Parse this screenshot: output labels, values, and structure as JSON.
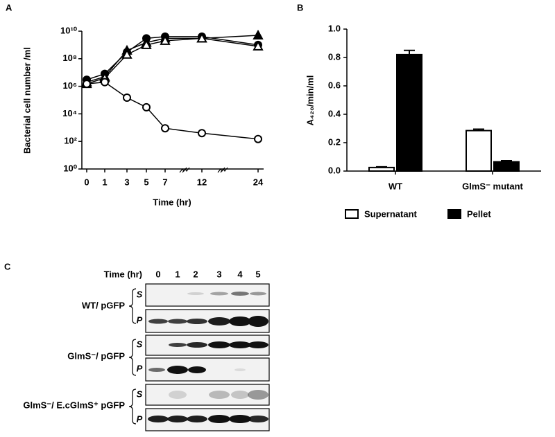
{
  "chart_data": [
    {
      "type": "line",
      "panel_label": "A",
      "x_label": "Time (hr)",
      "y_label": "Bacterial cell number /ml",
      "categories": [
        "0",
        "1",
        "3",
        "5",
        "7",
        "12",
        "24"
      ],
      "log_y": true,
      "ylim": [
        1,
        10000000000
      ],
      "yticks": [
        {
          "value": 1,
          "label": "10⁰"
        },
        {
          "value": 100,
          "label": "10²"
        },
        {
          "value": 10000,
          "label": "10⁴"
        },
        {
          "value": 1000000,
          "label": "10⁶"
        },
        {
          "value": 100000000,
          "label": "10⁸"
        },
        {
          "value": 10000000000,
          "label": "10¹⁰"
        }
      ],
      "series": [
        {
          "marker": "circle",
          "filled": true,
          "color": "#000000",
          "values": [
            3000000,
            8000000,
            300000000,
            3000000000,
            4000000000,
            4000000000,
            1000000000
          ]
        },
        {
          "marker": "triangle",
          "filled": true,
          "color": "#000000",
          "values": [
            2000000,
            5000000,
            400000000,
            1500000000,
            3000000000,
            3000000000,
            5000000000
          ]
        },
        {
          "marker": "triangle",
          "filled": false,
          "color": "#000000",
          "values": [
            1500000,
            4000000,
            200000000,
            1000000000,
            2000000000,
            3000000000,
            800000000
          ]
        },
        {
          "marker": "circle",
          "filled": false,
          "color": "#000000",
          "values": [
            1500000,
            2000000,
            150000,
            30000,
            900,
            400,
            150
          ]
        }
      ]
    },
    {
      "type": "bar",
      "panel_label": "B",
      "y_label": "A₄₂₀/min/ml",
      "categories": [
        "WT",
        "GlmS⁻ mutant"
      ],
      "ylim": [
        0,
        1
      ],
      "yticks": [
        {
          "value": 0,
          "label": "0.0"
        },
        0.2,
        0.4,
        0.6,
        0.8,
        {
          "value": 1,
          "label": "1.0"
        }
      ],
      "legend": "bottom",
      "series": [
        {
          "name": "Supernatant",
          "color": "#ffffff",
          "values": [
            0.025,
            0.285
          ],
          "errors": [
            0.005,
            0.01
          ]
        },
        {
          "name": "Pellet",
          "color": "#000000",
          "values": [
            0.82,
            0.065
          ],
          "errors": [
            0.03,
            0.008
          ]
        }
      ]
    }
  ],
  "panel_c": {
    "label": "C",
    "time_label": "Time (hr)",
    "times": [
      "0",
      "1",
      "2",
      "3",
      "4",
      "5"
    ],
    "groups": [
      {
        "label": "WT/ pGFP",
        "lanes": [
          "S",
          "P"
        ]
      },
      {
        "label": "GlmS⁻/ pGFP",
        "lanes": [
          "S",
          "P"
        ]
      },
      {
        "label": "GlmS⁻/ E.cGlmS⁺ pGFP",
        "lanes": [
          "S",
          "P"
        ]
      }
    ]
  }
}
